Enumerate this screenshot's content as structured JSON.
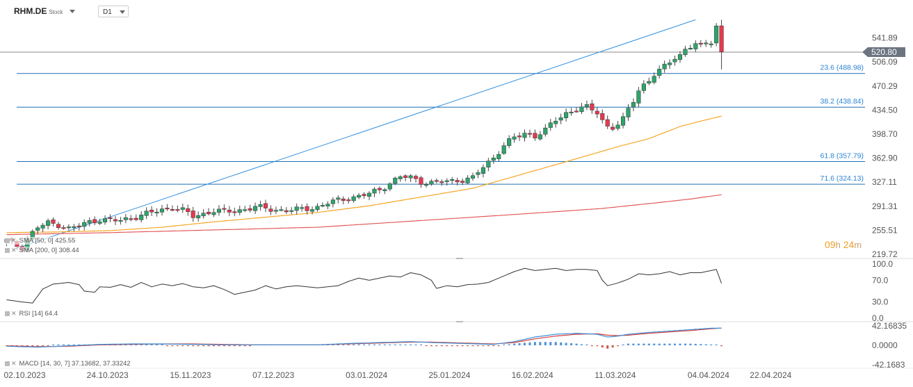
{
  "header": {
    "symbol": "RHM.DE",
    "symbol_type": "Stock",
    "timeframe": "D1"
  },
  "countdown": {
    "hours": "09",
    "h": "h",
    "minutes": "24",
    "m": "m"
  },
  "indicators": {
    "sma50": "SMA [50, 0] 425.55",
    "sma200": "SMA [200, 0] 308.44",
    "rsi": "RSI [14] 64.4",
    "macd": "MACD [14, 30, 7] 37.13682, 37.33242"
  },
  "chart_data": {
    "type": "candlestick",
    "colors": {
      "up": "#2fa36b",
      "down": "#e8384f",
      "sma50": "#f5a623",
      "sma200": "#e35a5a",
      "trendline": "#2f8fe0",
      "fib": "#1f6fb2",
      "macd": "#3b8fd6",
      "signal": "#d23b3b",
      "rsi": "#333333"
    },
    "x_axis": {
      "tick_labels": [
        "02.10.2023",
        "24.10.2023",
        "15.11.2023",
        "07.12.2023",
        "03.01.2024",
        "25.01.2024",
        "16.02.2024",
        "11.03.2024",
        "04.04.2024",
        "22.04.2024"
      ],
      "tick_index": [
        0,
        16,
        32,
        48,
        66,
        82,
        98,
        114,
        132,
        144
      ]
    },
    "price_axis": {
      "range": [
        219.72,
        577.68
      ],
      "tick_labels": [
        "541.89",
        "506.09",
        "470.29",
        "434.50",
        "398.70",
        "362.90",
        "327.11",
        "291.31",
        "255.51",
        "219.72"
      ],
      "current_price": 520.8,
      "current_label": "520.80"
    },
    "fib_levels": [
      {
        "label": "23.6 (488.98)",
        "value": 488.98
      },
      {
        "label": "38.2 (438.84)",
        "value": 438.84
      },
      {
        "label": "61.8 (357.79)",
        "value": 357.79
      },
      {
        "label": "71.6 (324.13)",
        "value": 324.13
      }
    ],
    "trendline": [
      {
        "i": 0,
        "p": 227
      },
      {
        "i": 133,
        "p": 569
      }
    ],
    "anchors": [
      [
        0,
        240
      ],
      [
        1,
        236
      ],
      [
        2,
        232
      ],
      [
        3,
        230
      ],
      [
        4,
        244
      ],
      [
        6,
        260
      ],
      [
        8,
        266
      ],
      [
        10,
        264
      ],
      [
        12,
        258
      ],
      [
        14,
        262
      ],
      [
        16,
        268
      ],
      [
        18,
        272
      ],
      [
        20,
        270
      ],
      [
        22,
        270
      ],
      [
        24,
        274
      ],
      [
        26,
        278
      ],
      [
        28,
        282
      ],
      [
        30,
        286
      ],
      [
        32,
        290
      ],
      [
        34,
        285
      ],
      [
        36,
        276
      ],
      [
        38,
        280
      ],
      [
        40,
        285
      ],
      [
        42,
        283
      ],
      [
        44,
        284
      ],
      [
        46,
        287
      ],
      [
        48,
        290
      ],
      [
        50,
        288
      ],
      [
        52,
        286
      ],
      [
        54,
        285
      ],
      [
        56,
        286
      ],
      [
        58,
        288
      ],
      [
        60,
        290
      ],
      [
        62,
        296
      ],
      [
        64,
        300
      ],
      [
        66,
        304
      ],
      [
        68,
        306
      ],
      [
        70,
        310
      ],
      [
        72,
        316
      ],
      [
        74,
        326
      ],
      [
        76,
        335
      ],
      [
        78,
        334
      ],
      [
        80,
        328
      ],
      [
        82,
        326
      ],
      [
        84,
        328
      ],
      [
        86,
        329
      ],
      [
        88,
        331
      ],
      [
        90,
        333
      ],
      [
        92,
        350
      ],
      [
        94,
        364
      ],
      [
        96,
        382
      ],
      [
        98,
        393
      ],
      [
        100,
        400
      ],
      [
        102,
        396
      ],
      [
        104,
        404
      ],
      [
        106,
        420
      ],
      [
        108,
        430
      ],
      [
        110,
        436
      ],
      [
        112,
        438
      ],
      [
        114,
        432
      ],
      [
        115,
        420
      ],
      [
        116,
        410
      ],
      [
        117,
        408
      ],
      [
        118,
        412
      ],
      [
        119,
        420
      ],
      [
        120,
        436
      ],
      [
        121,
        450
      ],
      [
        122,
        465
      ],
      [
        123,
        472
      ],
      [
        124,
        478
      ],
      [
        125,
        486
      ],
      [
        126,
        492
      ],
      [
        127,
        500
      ],
      [
        128,
        508
      ],
      [
        129,
        514
      ],
      [
        130,
        516
      ],
      [
        131,
        524
      ],
      [
        132,
        528
      ],
      [
        133,
        532
      ],
      [
        134,
        530
      ],
      [
        135,
        536
      ],
      [
        136,
        538
      ],
      [
        137,
        560
      ],
      [
        138,
        521
      ]
    ],
    "sma50_points": [
      [
        0,
        252
      ],
      [
        10,
        253
      ],
      [
        20,
        255
      ],
      [
        30,
        260
      ],
      [
        40,
        268
      ],
      [
        50,
        275
      ],
      [
        60,
        282
      ],
      [
        70,
        292
      ],
      [
        80,
        305
      ],
      [
        90,
        318
      ],
      [
        100,
        340
      ],
      [
        110,
        362
      ],
      [
        118,
        380
      ],
      [
        124,
        392
      ],
      [
        130,
        410
      ],
      [
        134,
        418
      ],
      [
        138,
        425.55
      ]
    ],
    "sma200_points": [
      [
        0,
        249
      ],
      [
        20,
        252
      ],
      [
        40,
        256
      ],
      [
        60,
        260
      ],
      [
        80,
        270
      ],
      [
        100,
        280
      ],
      [
        115,
        288
      ],
      [
        125,
        296
      ],
      [
        132,
        302
      ],
      [
        138,
        308.44
      ]
    ],
    "rsi": {
      "range": [
        0,
        100
      ],
      "ticks": [
        "100.0",
        "70.0",
        "30.0",
        "0.0"
      ],
      "points": [
        [
          0,
          34
        ],
        [
          3,
          30
        ],
        [
          5,
          28
        ],
        [
          7,
          54
        ],
        [
          9,
          63
        ],
        [
          12,
          66
        ],
        [
          14,
          62
        ],
        [
          15,
          50
        ],
        [
          17,
          48
        ],
        [
          18,
          58
        ],
        [
          20,
          57
        ],
        [
          22,
          62
        ],
        [
          24,
          57
        ],
        [
          26,
          66
        ],
        [
          28,
          58
        ],
        [
          30,
          63
        ],
        [
          32,
          60
        ],
        [
          34,
          64
        ],
        [
          36,
          58
        ],
        [
          38,
          56
        ],
        [
          40,
          60
        ],
        [
          42,
          53
        ],
        [
          44,
          44
        ],
        [
          46,
          48
        ],
        [
          48,
          52
        ],
        [
          50,
          60
        ],
        [
          52,
          54
        ],
        [
          54,
          58
        ],
        [
          56,
          60
        ],
        [
          58,
          58
        ],
        [
          60,
          56
        ],
        [
          62,
          58
        ],
        [
          64,
          60
        ],
        [
          66,
          68
        ],
        [
          68,
          74
        ],
        [
          70,
          70
        ],
        [
          72,
          74
        ],
        [
          74,
          78
        ],
        [
          76,
          76
        ],
        [
          78,
          84
        ],
        [
          80,
          80
        ],
        [
          82,
          70
        ],
        [
          83,
          55
        ],
        [
          85,
          60
        ],
        [
          87,
          58
        ],
        [
          89,
          62
        ],
        [
          91,
          63
        ],
        [
          93,
          66
        ],
        [
          96,
          78
        ],
        [
          98,
          86
        ],
        [
          100,
          92
        ],
        [
          102,
          88
        ],
        [
          104,
          90
        ],
        [
          106,
          92
        ],
        [
          108,
          88
        ],
        [
          110,
          90
        ],
        [
          112,
          90
        ],
        [
          114,
          88
        ],
        [
          115,
          70
        ],
        [
          116,
          60
        ],
        [
          118,
          65
        ],
        [
          120,
          72
        ],
        [
          122,
          82
        ],
        [
          124,
          80
        ],
        [
          126,
          82
        ],
        [
          128,
          86
        ],
        [
          130,
          80
        ],
        [
          132,
          84
        ],
        [
          134,
          84
        ],
        [
          136,
          88
        ],
        [
          137,
          90
        ],
        [
          138,
          64.4
        ]
      ]
    },
    "macd": {
      "range": [
        -42.1683,
        42.16835
      ],
      "ticks": [
        "42.16835",
        "0.0000",
        "-42.1683"
      ],
      "macd_points": [
        [
          0,
          -2
        ],
        [
          6,
          -4
        ],
        [
          12,
          -1
        ],
        [
          18,
          2
        ],
        [
          24,
          3
        ],
        [
          30,
          3
        ],
        [
          36,
          2
        ],
        [
          42,
          1
        ],
        [
          48,
          1
        ],
        [
          54,
          1
        ],
        [
          60,
          1
        ],
        [
          66,
          4
        ],
        [
          72,
          6
        ],
        [
          78,
          8
        ],
        [
          82,
          6
        ],
        [
          88,
          4
        ],
        [
          94,
          2
        ],
        [
          98,
          8
        ],
        [
          102,
          18
        ],
        [
          106,
          24
        ],
        [
          110,
          26
        ],
        [
          114,
          24
        ],
        [
          116,
          18
        ],
        [
          118,
          20
        ],
        [
          120,
          24
        ],
        [
          124,
          28
        ],
        [
          128,
          31
        ],
        [
          132,
          34
        ],
        [
          136,
          37
        ],
        [
          138,
          37.14
        ]
      ],
      "signal_points": [
        [
          0,
          -1
        ],
        [
          6,
          -3
        ],
        [
          12,
          -2
        ],
        [
          18,
          1
        ],
        [
          24,
          2
        ],
        [
          30,
          3
        ],
        [
          36,
          3
        ],
        [
          42,
          2
        ],
        [
          48,
          1
        ],
        [
          54,
          1
        ],
        [
          60,
          1
        ],
        [
          66,
          3
        ],
        [
          72,
          5
        ],
        [
          78,
          7
        ],
        [
          82,
          7
        ],
        [
          88,
          5
        ],
        [
          94,
          3
        ],
        [
          98,
          6
        ],
        [
          102,
          14
        ],
        [
          106,
          20
        ],
        [
          110,
          24
        ],
        [
          114,
          25
        ],
        [
          116,
          22
        ],
        [
          118,
          21
        ],
        [
          120,
          22
        ],
        [
          124,
          26
        ],
        [
          128,
          29
        ],
        [
          132,
          32
        ],
        [
          136,
          36
        ],
        [
          138,
          37.33
        ]
      ]
    }
  }
}
